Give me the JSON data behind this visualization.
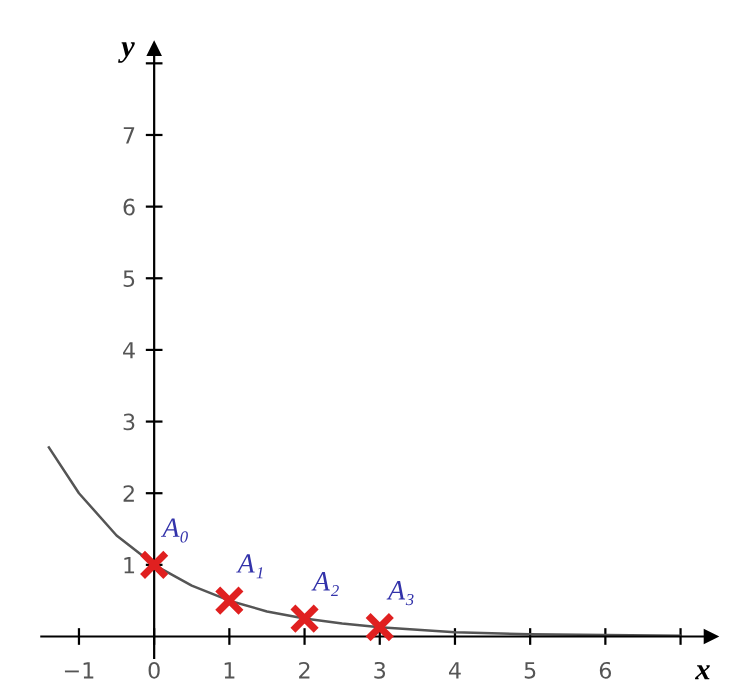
{
  "chart_data": {
    "type": "line",
    "xlabel": "x",
    "ylabel": "y",
    "xlim": [
      -1.5,
      7.4
    ],
    "ylim": [
      -0.3,
      8.2
    ],
    "xticks": [
      -1,
      0,
      1,
      2,
      3,
      4,
      5,
      6,
      {
        "value": 7,
        "label": null
      }
    ],
    "yticks": [
      1,
      2,
      3,
      4,
      5,
      6,
      7,
      {
        "value": 8,
        "label": null
      }
    ],
    "grid": false,
    "legend": false,
    "series": [
      {
        "color": "#555555",
        "marker": "none",
        "line_style": "solid",
        "x": [
          -1.4,
          -1,
          -0.5,
          0,
          0.5,
          1,
          1.5,
          2,
          2.5,
          3,
          4,
          5,
          6,
          7
        ],
        "values": [
          2.64,
          2,
          1.41,
          1,
          0.71,
          0.5,
          0.35,
          0.25,
          0.18,
          0.13,
          0.06,
          0.03,
          0.02,
          0.01
        ]
      },
      {
        "type": "scatter",
        "color": "#e02020",
        "marker": "cross",
        "x": [
          0,
          1,
          2,
          3
        ],
        "values": [
          1,
          0.5,
          0.25,
          0.13
        ]
      }
    ],
    "annotations": [
      {
        "text": "A₀",
        "x": 0,
        "y": 1
      },
      {
        "text": "A₁",
        "x": 1,
        "y": 0.5
      },
      {
        "text": "A₂",
        "x": 2,
        "y": 0.25
      },
      {
        "text": "A₃",
        "x": 3,
        "y": 0.125
      }
    ]
  }
}
